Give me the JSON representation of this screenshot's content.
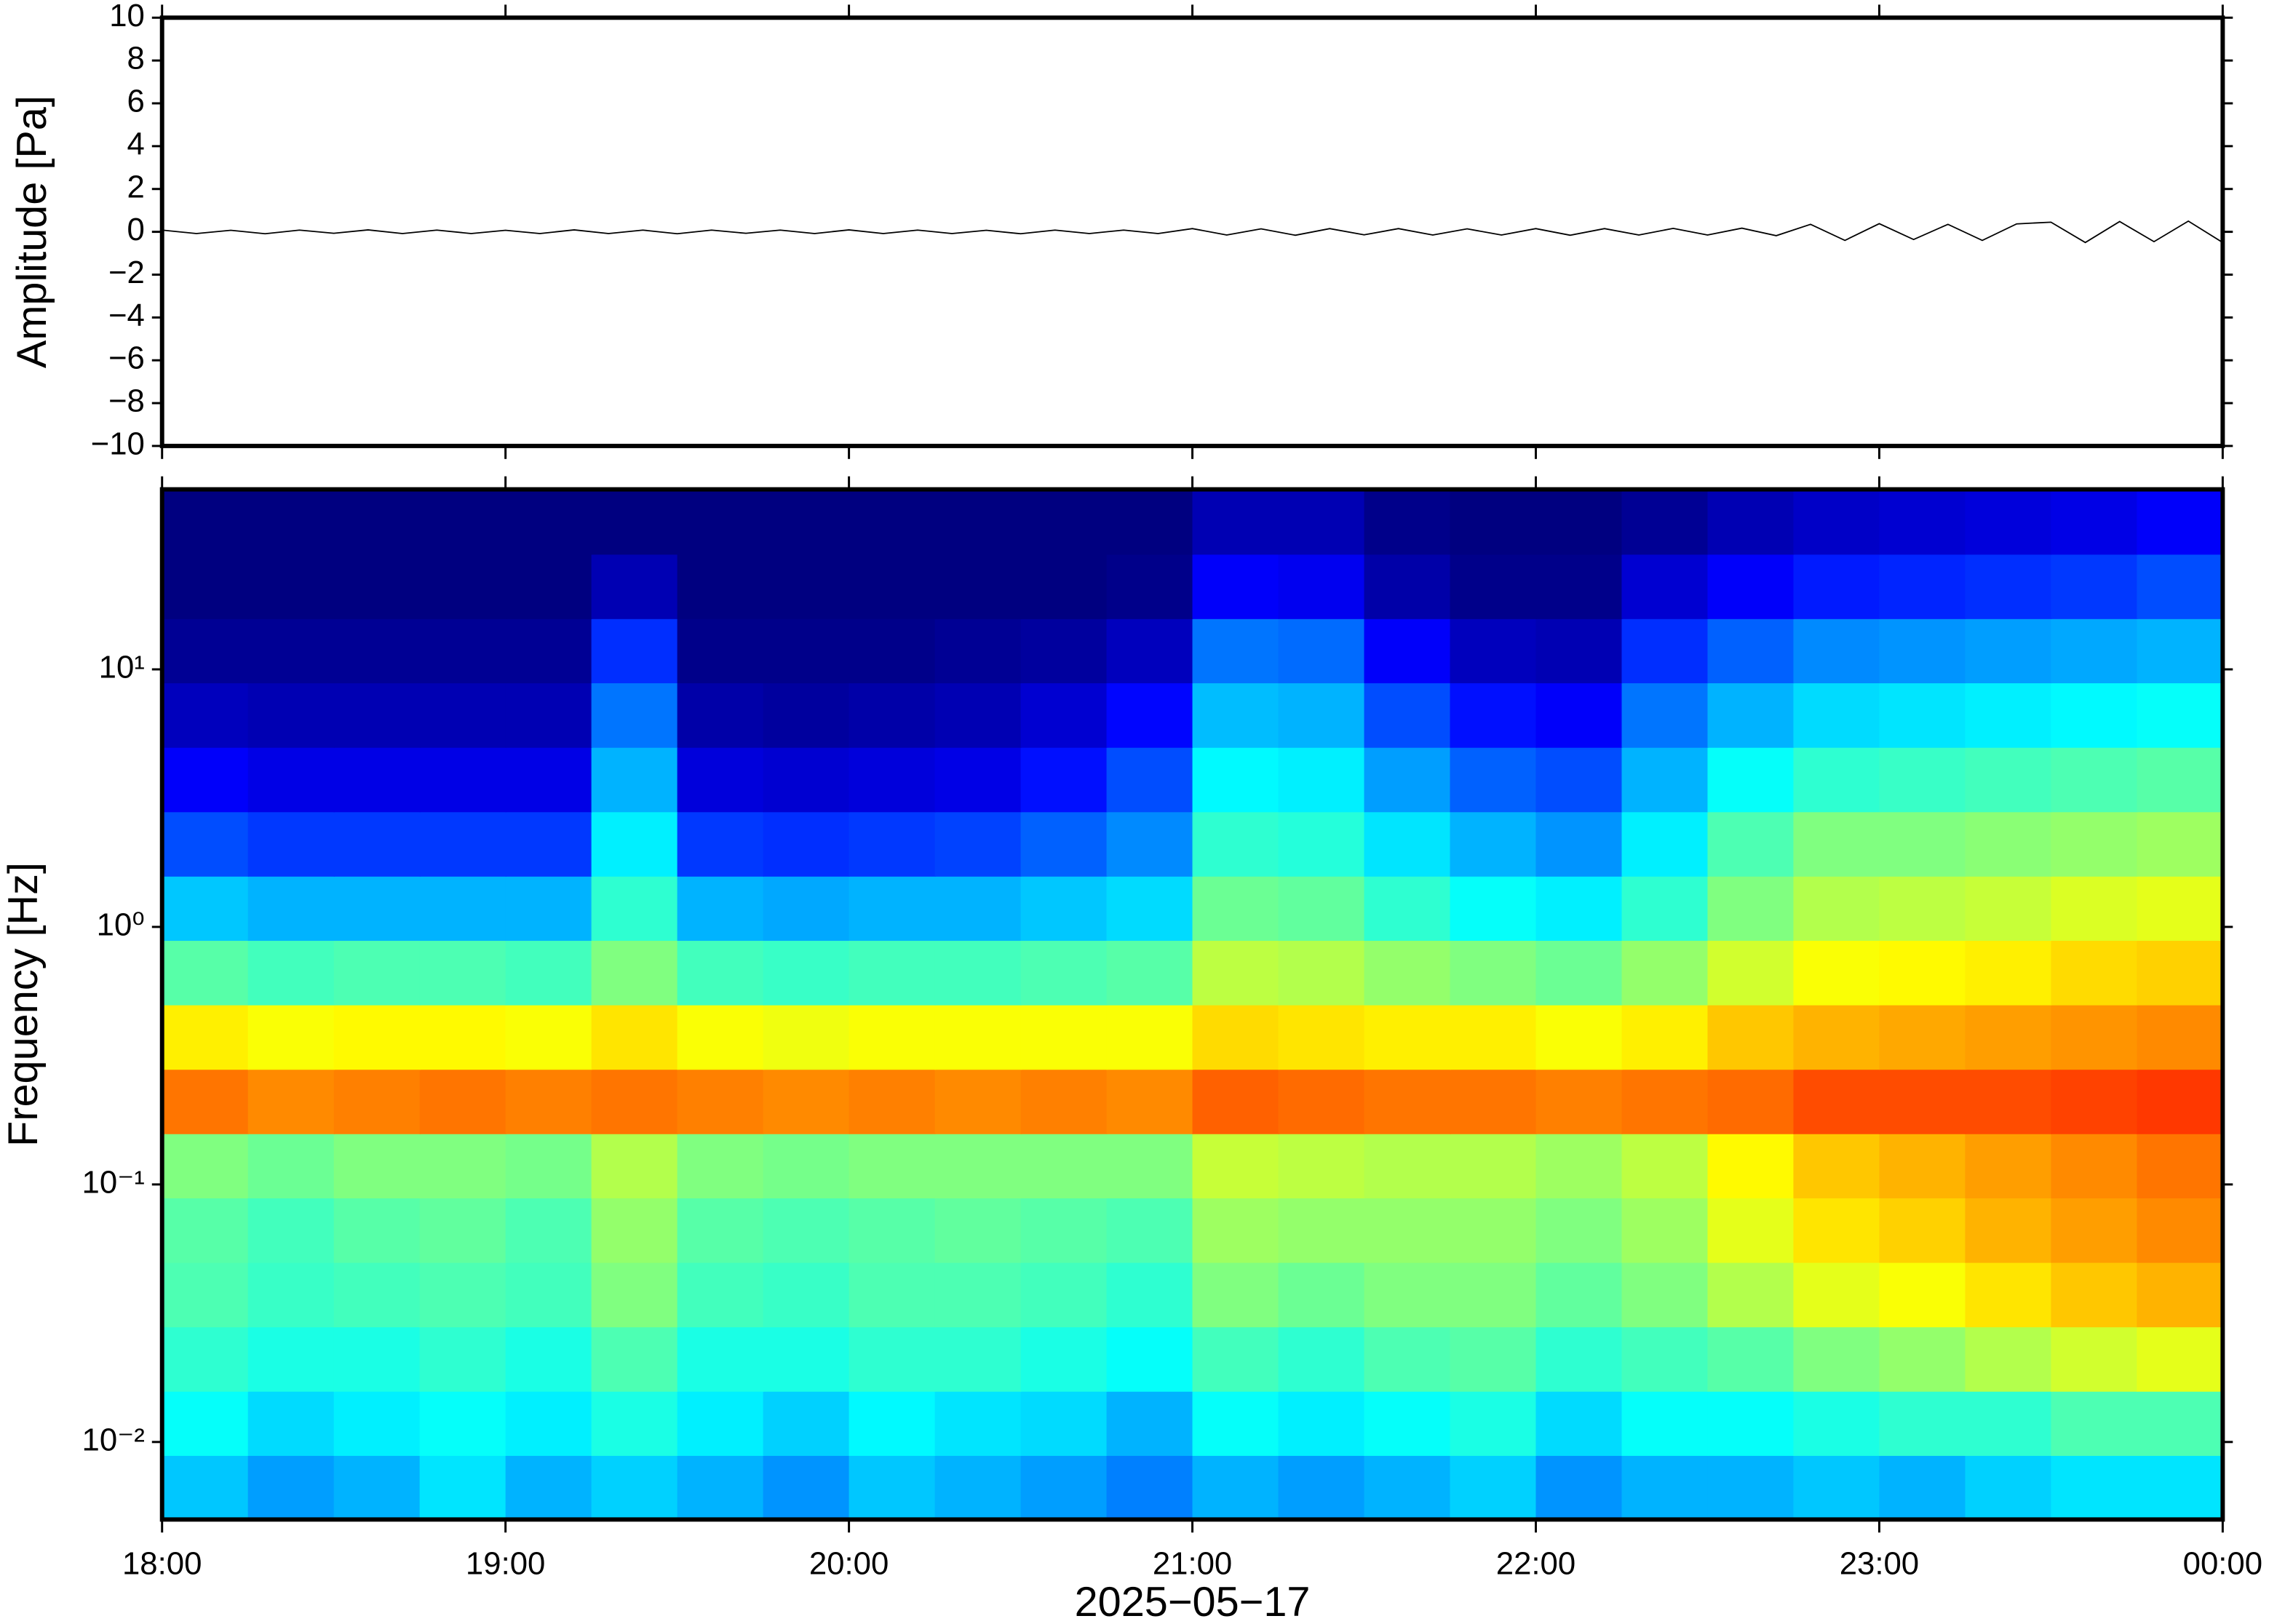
{
  "chart_data": [
    {
      "type": "line",
      "ylabel": "Amplitude [Pa]",
      "color": "#000000",
      "xlim": [
        18,
        24
      ],
      "xticks": [
        18,
        19,
        20,
        21,
        22,
        23,
        24
      ],
      "ylim": [
        -10,
        10
      ],
      "yticks": [
        {
          "value": -10,
          "label": "−10"
        },
        {
          "value": -8,
          "label": "−8"
        },
        {
          "value": -6,
          "label": "−6"
        },
        {
          "value": -4,
          "label": "−4"
        },
        {
          "value": -2,
          "label": "−2"
        },
        0,
        2,
        4,
        6,
        8,
        10
      ],
      "x": [
        18,
        18.1,
        18.2,
        18.3,
        18.4,
        18.5,
        18.6,
        18.7,
        18.8,
        18.9,
        19,
        19.1,
        19.2,
        19.3,
        19.4,
        19.5,
        19.6,
        19.7,
        19.8,
        19.9,
        20,
        20.1,
        20.2,
        20.3,
        20.4,
        20.5,
        20.6,
        20.7,
        20.8,
        20.9,
        21,
        21.1,
        21.2,
        21.3,
        21.4,
        21.5,
        21.6,
        21.7,
        21.8,
        21.9,
        22,
        22.1,
        22.2,
        22.3,
        22.4,
        22.5,
        22.6,
        22.7,
        22.8,
        22.9,
        23,
        23.1,
        23.2,
        23.3,
        23.4,
        23.5,
        23.6,
        23.7,
        23.8,
        23.9,
        24
      ],
      "values": [
        0.08,
        -0.08,
        0.07,
        -0.09,
        0.08,
        -0.07,
        0.09,
        -0.08,
        0.08,
        -0.08,
        0.07,
        -0.08,
        0.09,
        -0.08,
        0.08,
        -0.09,
        0.08,
        -0.07,
        0.08,
        -0.08,
        0.09,
        -0.08,
        0.08,
        -0.08,
        0.07,
        -0.09,
        0.08,
        -0.08,
        0.08,
        -0.08,
        0.15,
        -0.15,
        0.14,
        -0.16,
        0.15,
        -0.14,
        0.15,
        -0.15,
        0.14,
        -0.15,
        0.15,
        -0.16,
        0.15,
        -0.15,
        0.16,
        -0.15,
        0.17,
        -0.18,
        0.35,
        -0.4,
        0.38,
        -0.36,
        0.35,
        -0.4,
        0.37,
        0.45,
        -0.5,
        0.48,
        -0.46,
        0.5,
        -0.5
      ]
    },
    {
      "type": "heatmap",
      "ylabel": "Frequency [Hz]",
      "xlabel": "2025−05−17",
      "xlim": [
        18,
        24
      ],
      "xticks": [
        {
          "value": 18,
          "label": "18:00"
        },
        {
          "value": 19,
          "label": "19:00"
        },
        {
          "value": 20,
          "label": "20:00"
        },
        {
          "value": 21,
          "label": "21:00"
        },
        {
          "value": 22,
          "label": "22:00"
        },
        {
          "value": 23,
          "label": "23:00"
        },
        {
          "value": 24,
          "label": "00:00"
        }
      ],
      "ylim": [
        0.005,
        50
      ],
      "yscale": "log",
      "yticks": [
        {
          "value": 0.01,
          "label": "10⁻²"
        },
        {
          "value": 0.1,
          "label": "10⁻¹"
        },
        {
          "value": 1,
          "label": "10⁰"
        },
        {
          "value": 10,
          "label": "10¹"
        }
      ],
      "colormap": "jet",
      "zlim": [
        0,
        1
      ],
      "xbins": [
        18,
        18.25,
        18.5,
        18.75,
        19,
        19.25,
        19.5,
        19.75,
        20,
        20.25,
        20.5,
        20.75,
        21,
        21.25,
        21.5,
        21.75,
        22,
        22.25,
        22.5,
        22.75,
        23,
        23.25,
        23.5,
        23.75,
        24
      ],
      "ybins": [
        0.005,
        0.0089,
        0.0158,
        0.0281,
        0.05,
        0.089,
        0.158,
        0.281,
        0.5,
        0.89,
        1.58,
        2.81,
        5,
        8.9,
        15.8,
        28.1,
        50
      ],
      "z": [
        [
          0.32,
          0.28,
          0.3,
          0.35,
          0.3,
          0.33,
          0.3,
          0.27,
          0.32,
          0.3,
          0.28,
          0.25,
          0.3,
          0.28,
          0.3,
          0.33,
          0.27,
          0.3,
          0.3,
          0.32,
          0.3,
          0.33,
          0.35,
          0.35
        ],
        [
          0.38,
          0.34,
          0.36,
          0.38,
          0.36,
          0.4,
          0.36,
          0.33,
          0.37,
          0.35,
          0.34,
          0.3,
          0.38,
          0.36,
          0.38,
          0.4,
          0.34,
          0.38,
          0.38,
          0.4,
          0.42,
          0.42,
          0.45,
          0.45
        ],
        [
          0.42,
          0.4,
          0.4,
          0.42,
          0.4,
          0.45,
          0.4,
          0.4,
          0.42,
          0.42,
          0.4,
          0.38,
          0.44,
          0.42,
          0.45,
          0.46,
          0.42,
          0.44,
          0.46,
          0.5,
          0.52,
          0.55,
          0.58,
          0.6
        ],
        [
          0.45,
          0.43,
          0.44,
          0.45,
          0.44,
          0.5,
          0.44,
          0.43,
          0.45,
          0.45,
          0.44,
          0.42,
          0.5,
          0.48,
          0.5,
          0.5,
          0.47,
          0.5,
          0.55,
          0.6,
          0.62,
          0.65,
          0.68,
          0.7
        ],
        [
          0.46,
          0.44,
          0.46,
          0.47,
          0.45,
          0.52,
          0.46,
          0.45,
          0.46,
          0.47,
          0.46,
          0.45,
          0.53,
          0.52,
          0.52,
          0.52,
          0.5,
          0.53,
          0.6,
          0.65,
          0.67,
          0.7,
          0.72,
          0.74
        ],
        [
          0.5,
          0.48,
          0.5,
          0.5,
          0.49,
          0.55,
          0.5,
          0.49,
          0.5,
          0.5,
          0.5,
          0.5,
          0.57,
          0.56,
          0.55,
          0.55,
          0.53,
          0.56,
          0.63,
          0.68,
          0.7,
          0.72,
          0.74,
          0.76
        ],
        [
          0.76,
          0.74,
          0.75,
          0.76,
          0.75,
          0.76,
          0.75,
          0.74,
          0.75,
          0.74,
          0.75,
          0.74,
          0.78,
          0.77,
          0.76,
          0.76,
          0.75,
          0.76,
          0.77,
          0.8,
          0.8,
          0.8,
          0.81,
          0.82
        ],
        [
          0.64,
          0.62,
          0.63,
          0.63,
          0.62,
          0.65,
          0.62,
          0.61,
          0.62,
          0.62,
          0.62,
          0.62,
          0.66,
          0.65,
          0.64,
          0.64,
          0.62,
          0.64,
          0.68,
          0.7,
          0.71,
          0.72,
          0.73,
          0.74
        ],
        [
          0.46,
          0.44,
          0.45,
          0.45,
          0.44,
          0.5,
          0.44,
          0.43,
          0.44,
          0.44,
          0.45,
          0.46,
          0.56,
          0.55,
          0.52,
          0.5,
          0.48,
          0.52,
          0.58,
          0.62,
          0.63,
          0.64,
          0.66,
          0.67
        ],
        [
          0.32,
          0.3,
          0.3,
          0.3,
          0.3,
          0.42,
          0.3,
          0.29,
          0.3,
          0.3,
          0.32,
          0.34,
          0.48,
          0.47,
          0.42,
          0.38,
          0.36,
          0.42,
          0.5,
          0.55,
          0.56,
          0.57,
          0.59,
          0.6
        ],
        [
          0.2,
          0.18,
          0.18,
          0.18,
          0.18,
          0.36,
          0.18,
          0.17,
          0.18,
          0.19,
          0.22,
          0.26,
          0.42,
          0.41,
          0.35,
          0.3,
          0.27,
          0.36,
          0.45,
          0.5,
          0.5,
          0.51,
          0.52,
          0.53
        ],
        [
          0.12,
          0.1,
          0.1,
          0.1,
          0.1,
          0.3,
          0.09,
          0.08,
          0.09,
          0.1,
          0.14,
          0.2,
          0.37,
          0.36,
          0.28,
          0.22,
          0.2,
          0.3,
          0.38,
          0.42,
          0.43,
          0.44,
          0.45,
          0.46
        ],
        [
          0.06,
          0.05,
          0.05,
          0.05,
          0.05,
          0.24,
          0.04,
          0.03,
          0.04,
          0.05,
          0.08,
          0.13,
          0.31,
          0.3,
          0.2,
          0.14,
          0.12,
          0.24,
          0.3,
          0.34,
          0.35,
          0.36,
          0.37,
          0.38
        ],
        [
          0.02,
          0.02,
          0.02,
          0.02,
          0.02,
          0.17,
          0.01,
          0.01,
          0.01,
          0.02,
          0.03,
          0.06,
          0.24,
          0.23,
          0.12,
          0.06,
          0.05,
          0.17,
          0.22,
          0.26,
          0.27,
          0.28,
          0.29,
          0.3
        ],
        [
          0,
          0,
          0,
          0,
          0,
          0.05,
          0,
          0,
          0,
          0,
          0,
          0.01,
          0.12,
          0.11,
          0.04,
          0.01,
          0.01,
          0.08,
          0.12,
          0.15,
          0.16,
          0.17,
          0.18,
          0.2
        ],
        [
          0,
          0,
          0,
          0,
          0,
          0,
          0,
          0,
          0,
          0,
          0,
          0,
          0.05,
          0.05,
          0.01,
          0,
          0,
          0.02,
          0.05,
          0.07,
          0.08,
          0.09,
          0.1,
          0.12
        ]
      ]
    }
  ]
}
